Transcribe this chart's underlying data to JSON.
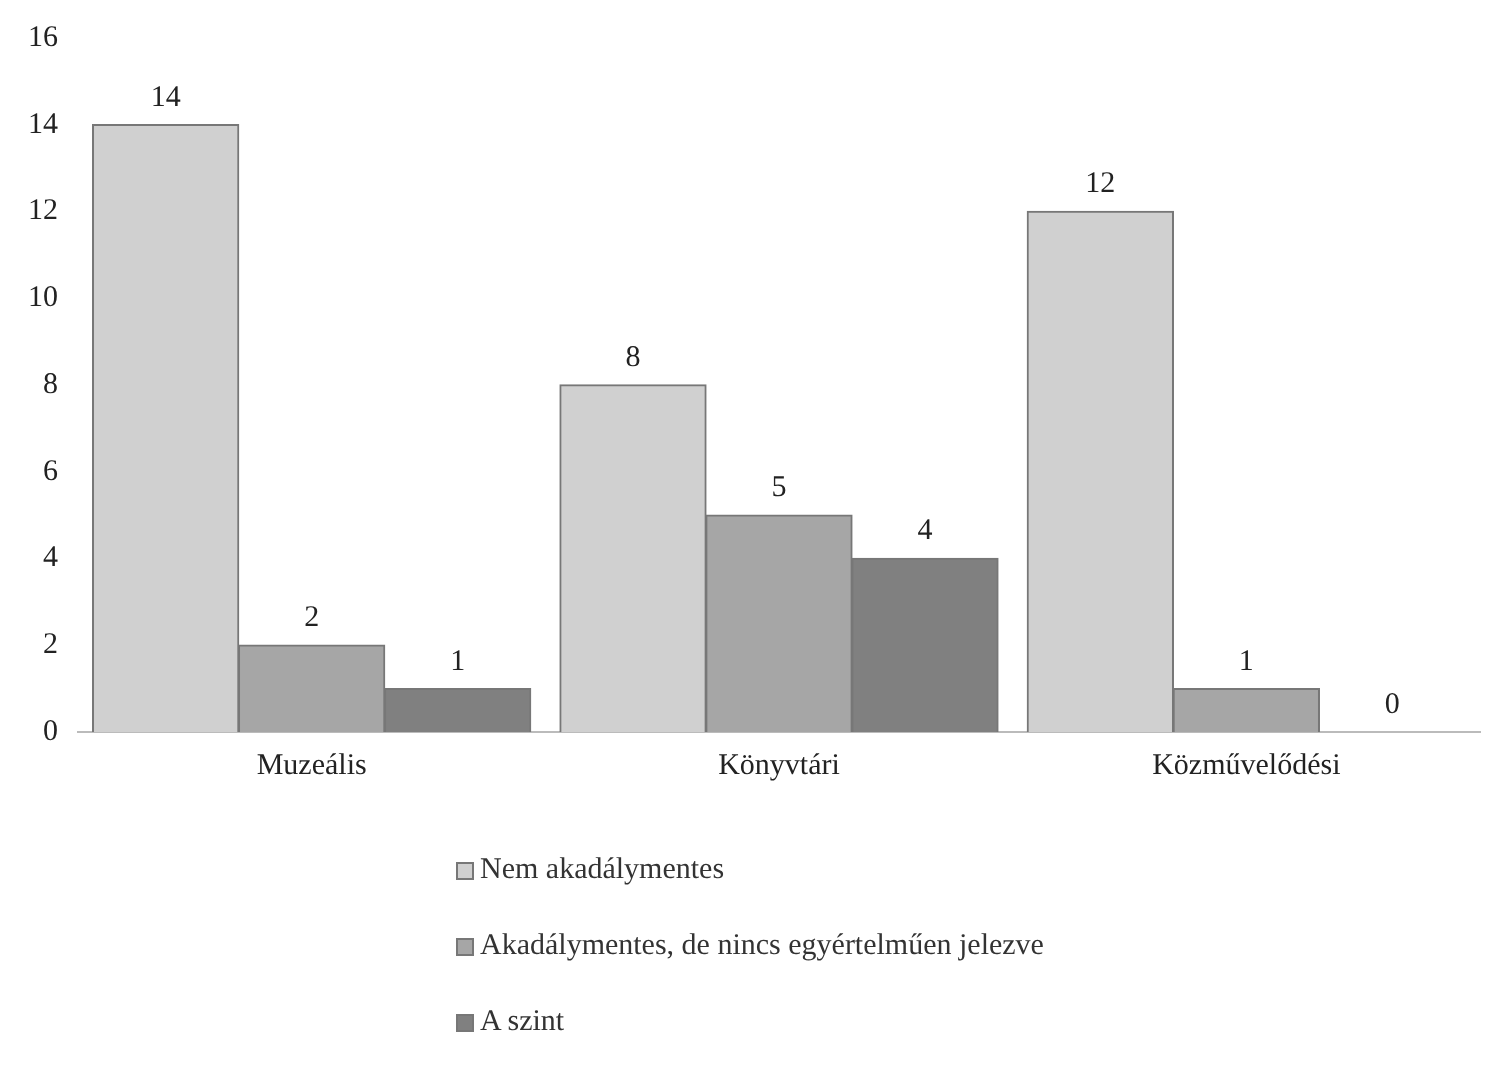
{
  "chart_data": {
    "type": "bar",
    "categories": [
      "Muzeális",
      "Könyvtári",
      "Közművelődési"
    ],
    "series": [
      {
        "name": "Nem akadálymentes",
        "color": "#d0d0d0",
        "values": [
          14,
          8,
          12
        ]
      },
      {
        "name": "Akadálymentes, de nincs egyértelműen jelezve",
        "color": "#a6a6a6",
        "values": [
          2,
          5,
          1
        ]
      },
      {
        "name": "A szint",
        "color": "#808080",
        "values": [
          1,
          4,
          0
        ]
      }
    ],
    "ylim": [
      0,
      16
    ],
    "yticks": [
      0,
      2,
      4,
      6,
      8,
      10,
      12,
      14,
      16
    ],
    "grid": false,
    "legend": "bottom",
    "data_labels": true
  }
}
